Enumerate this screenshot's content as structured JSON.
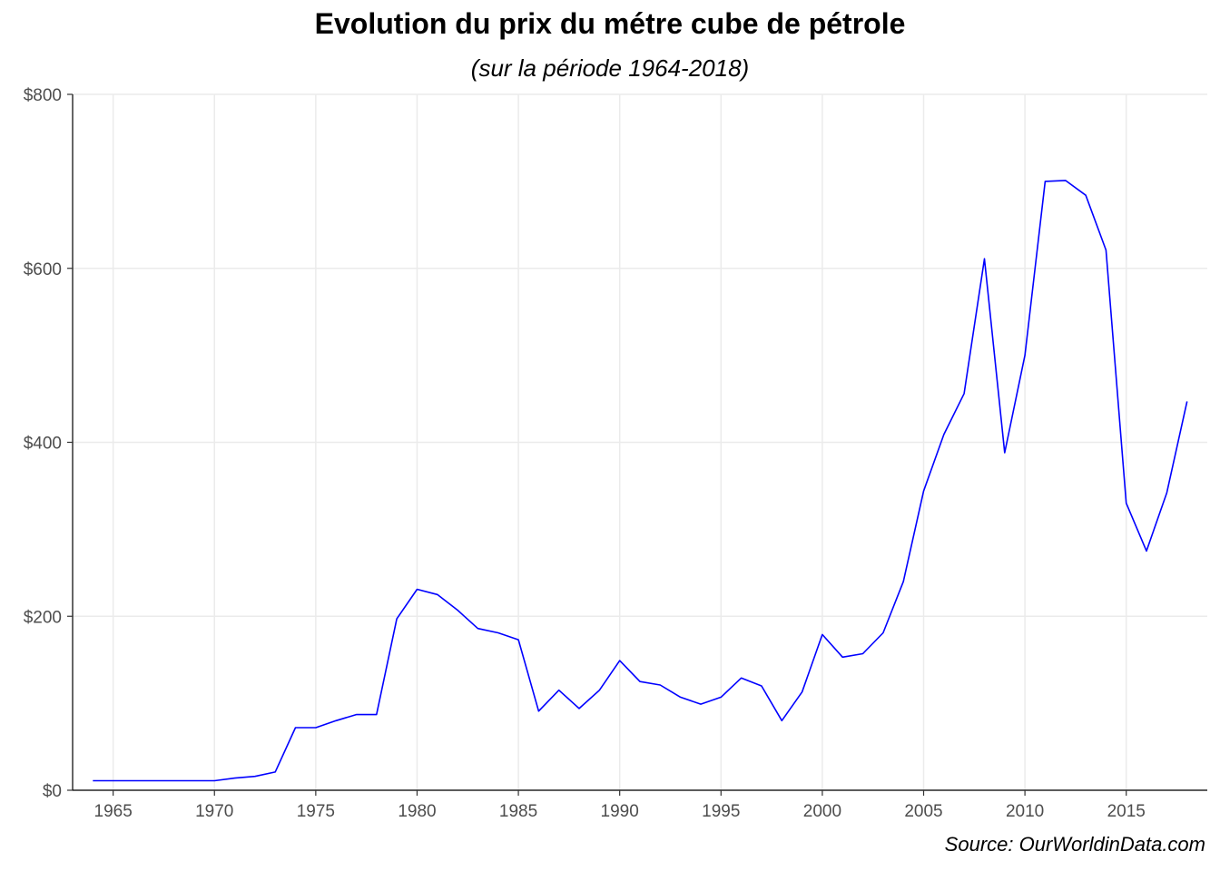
{
  "chart_data": {
    "type": "line",
    "title": "Evolution du prix du métre cube de pétrole",
    "subtitle": "(sur la période 1964-2018)",
    "caption": "Source: OurWorldinData.com",
    "xlabel": "",
    "ylabel": "",
    "xlim": [
      1963,
      2019
    ],
    "ylim": [
      0,
      800
    ],
    "x_ticks": [
      1965,
      1970,
      1975,
      1980,
      1985,
      1990,
      1995,
      2000,
      2005,
      2010,
      2015
    ],
    "y_ticks": [
      0,
      200,
      400,
      600,
      800
    ],
    "y_tick_labels": [
      "$0",
      "$200",
      "$400",
      "$600",
      "$800"
    ],
    "grid": true,
    "line_color": "#0000ff",
    "series": [
      {
        "x": [
          1964,
          1965,
          1966,
          1967,
          1968,
          1969,
          1970,
          1971,
          1972,
          1973,
          1974,
          1975,
          1976,
          1977,
          1978,
          1979,
          1980,
          1981,
          1982,
          1983,
          1984,
          1985,
          1986,
          1987,
          1988,
          1989,
          1990,
          1991,
          1992,
          1993,
          1994,
          1995,
          1996,
          1997,
          1998,
          1999,
          2000,
          2001,
          2002,
          2003,
          2004,
          2005,
          2006,
          2007,
          2008,
          2009,
          2010,
          2011,
          2012,
          2013,
          2014,
          2015,
          2016,
          2017,
          2018
        ],
        "values": [
          11,
          11,
          11,
          11,
          11,
          11,
          11,
          14,
          16,
          21,
          72,
          72,
          80,
          87,
          87,
          197,
          231,
          225,
          207,
          186,
          181,
          173,
          91,
          115,
          94,
          115,
          149,
          125,
          121,
          107,
          99,
          107,
          129,
          120,
          80,
          113,
          179,
          153,
          157,
          181,
          240,
          344,
          409,
          456,
          611,
          388,
          500,
          700,
          701,
          684,
          621,
          330,
          275,
          342,
          447
        ]
      }
    ]
  }
}
